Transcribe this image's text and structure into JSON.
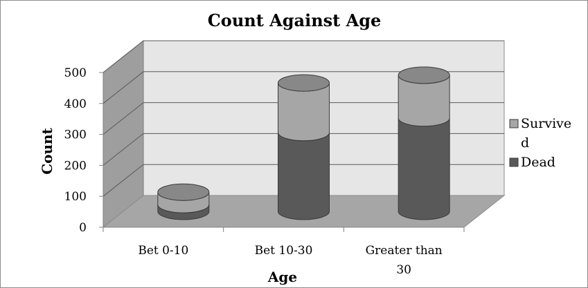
{
  "chart_data": {
    "type": "bar",
    "subtype": "stacked-3d-cylinder",
    "title": "Count Against Age",
    "xlabel": "Age",
    "ylabel": "Count",
    "categories": [
      "Bet 0-10",
      "Bet 10-30",
      "Greater than 30"
    ],
    "series": [
      {
        "name": "Dead",
        "values": [
          22,
          255,
          302
        ],
        "color": "#595959"
      },
      {
        "name": "Survived",
        "values": [
          40,
          160,
          138
        ],
        "color": "#a6a6a6"
      }
    ],
    "legend_labels": [
      "Survive d",
      "Dead"
    ],
    "ylim": [
      0,
      500
    ],
    "yticks": [
      0,
      100,
      200,
      300,
      400,
      500
    ],
    "grid": true,
    "legend_position": "right",
    "colors": {
      "wall": "#e6e6e6",
      "side_wall": "#9e9e9e",
      "floor": "#a6a6a6",
      "grid": "#595959"
    }
  }
}
